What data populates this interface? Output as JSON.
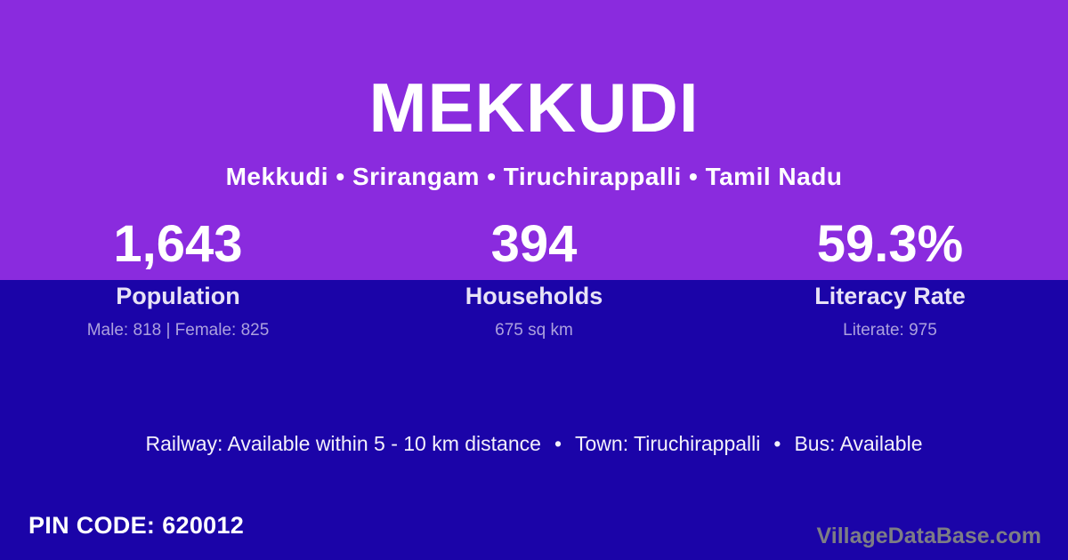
{
  "poster": {
    "title": "MEKKUDI",
    "location_breadcrumb": "Mekkudi • Srirangam • Tiruchirappalli • Tamil Nadu",
    "stats": [
      {
        "value": "1,643",
        "label": "Population",
        "detail": "Male: 818 | Female: 825"
      },
      {
        "value": "394",
        "label": "Households",
        "detail": "675 sq km"
      },
      {
        "value": "59.3%",
        "label": "Literacy Rate",
        "detail": "Literate: 975"
      }
    ],
    "info_line": {
      "separator": "•",
      "segments": [
        "Railway: Available within 5 - 10 km distance",
        "Town: Tiruchirappalli",
        "Bus: Available"
      ]
    },
    "pin": {
      "label": "PIN CODE:",
      "value": "620012"
    },
    "watermark": "VillageDataBase.com",
    "colors": {
      "top_background": "#8A2BDE",
      "bottom_background": "#1B04A8",
      "primary_text": "#FFFFFF",
      "muted_text": "#ACA1DE",
      "watermark_text": "#7D7D85"
    }
  }
}
